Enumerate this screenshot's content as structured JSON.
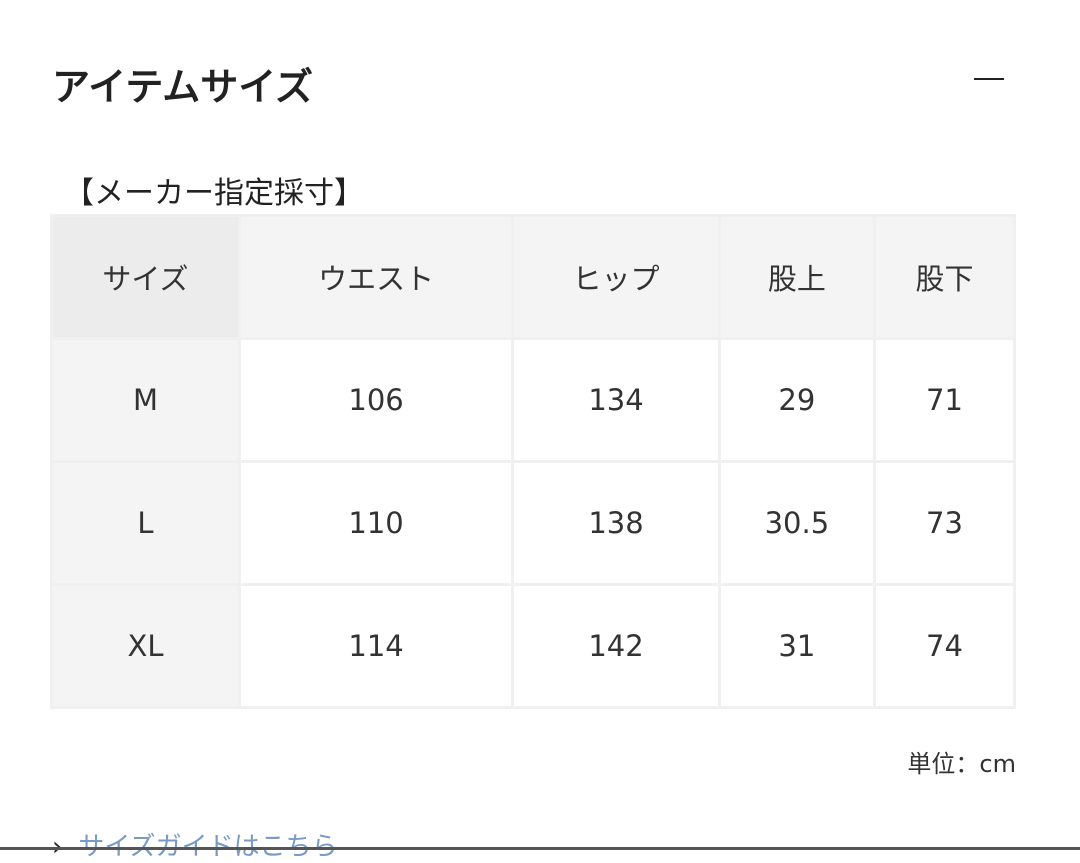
{
  "section": {
    "title": "アイテムサイズ",
    "collapse_icon": "minus-icon"
  },
  "subtitle": "【メーカー指定採寸】",
  "table": {
    "headers": [
      "サイズ",
      "ウエスト",
      "ヒップ",
      "股上",
      "股下"
    ],
    "rows": [
      [
        "M",
        "106",
        "134",
        "29",
        "71"
      ],
      [
        "L",
        "110",
        "138",
        "30.5",
        "73"
      ],
      [
        "XL",
        "114",
        "142",
        "31",
        "74"
      ]
    ]
  },
  "unit": "単位：cm",
  "size_guide_link": "サイズガイドはこちら"
}
